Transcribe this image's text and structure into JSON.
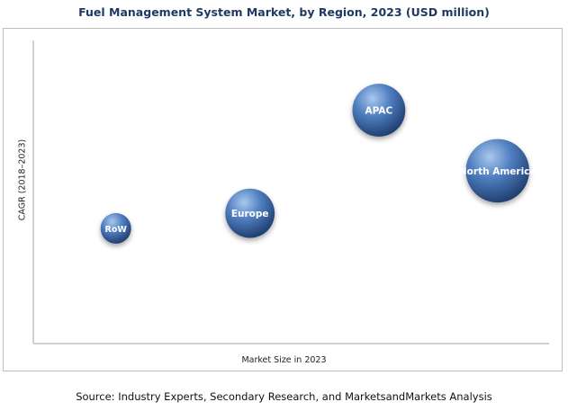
{
  "chart_data": {
    "type": "bubble",
    "title": "Fuel Management System Market, by Region, 2023 (USD million)",
    "xlabel": "Market Size in 2023",
    "ylabel": "CAGR (2018–2023)",
    "xlim": [
      0,
      100
    ],
    "ylim": [
      0,
      100
    ],
    "series": [
      {
        "name": "RoW",
        "x": 16,
        "y": 38,
        "size": 1.0
      },
      {
        "name": "Europe",
        "x": 42,
        "y": 43,
        "size": 2.6
      },
      {
        "name": "APAC",
        "x": 67,
        "y": 77,
        "size": 3.0
      },
      {
        "name": "North America",
        "x": 90,
        "y": 57,
        "size": 4.3
      }
    ]
  },
  "footer": {
    "source": "Source: Industry Experts, Secondary Research, and MarketsandMarkets Analysis"
  },
  "colors": {
    "bubble_light": "#a9c8ee",
    "bubble_mid": "#4f7fc0",
    "bubble_dark": "#1e3c6e",
    "title": "#1f3864"
  }
}
